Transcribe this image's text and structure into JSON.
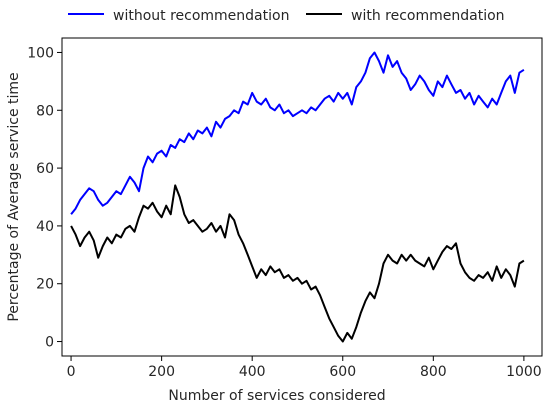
{
  "chart_data": {
    "type": "line",
    "title": "",
    "xlabel": "Number of services considered",
    "ylabel": "Percentage of Average service time",
    "xlim": [
      -20,
      1040
    ],
    "ylim": [
      -5,
      105
    ],
    "xticks": [
      0,
      200,
      400,
      600,
      800,
      1000
    ],
    "yticks": [
      0,
      20,
      40,
      60,
      80,
      100
    ],
    "grid": false,
    "legend": {
      "placement": "top-center",
      "columns": 2
    },
    "series": [
      {
        "name": "without recommendation",
        "color": "#0000ff",
        "x": [
          0,
          10,
          20,
          30,
          40,
          50,
          60,
          70,
          80,
          90,
          100,
          110,
          120,
          130,
          140,
          150,
          160,
          170,
          180,
          190,
          200,
          210,
          220,
          230,
          240,
          250,
          260,
          270,
          280,
          290,
          300,
          310,
          320,
          330,
          340,
          350,
          360,
          370,
          380,
          390,
          400,
          410,
          420,
          430,
          440,
          450,
          460,
          470,
          480,
          490,
          500,
          510,
          520,
          530,
          540,
          550,
          560,
          570,
          580,
          590,
          600,
          610,
          620,
          630,
          640,
          650,
          660,
          670,
          680,
          690,
          700,
          710,
          720,
          730,
          740,
          750,
          760,
          770,
          780,
          790,
          800,
          810,
          820,
          830,
          840,
          850,
          860,
          870,
          880,
          890,
          900,
          910,
          920,
          930,
          940,
          950,
          960,
          970,
          980,
          990,
          1000
        ],
        "y": [
          44,
          46,
          49,
          51,
          53,
          52,
          49,
          47,
          48,
          50,
          52,
          51,
          54,
          57,
          55,
          52,
          60,
          64,
          62,
          65,
          66,
          64,
          68,
          67,
          70,
          69,
          72,
          70,
          73,
          72,
          74,
          71,
          76,
          74,
          77,
          78,
          80,
          79,
          83,
          82,
          86,
          83,
          82,
          84,
          81,
          80,
          82,
          79,
          80,
          78,
          79,
          80,
          79,
          81,
          80,
          82,
          84,
          85,
          83,
          86,
          84,
          86,
          82,
          88,
          90,
          93,
          98,
          100,
          97,
          93,
          99,
          95,
          97,
          93,
          91,
          87,
          89,
          92,
          90,
          87,
          85,
          90,
          88,
          92,
          89,
          86,
          87,
          84,
          86,
          82,
          85,
          83,
          81,
          84,
          82,
          86,
          90,
          92,
          86,
          93,
          94
        ]
      },
      {
        "name": "with recommendation",
        "color": "#000000",
        "x": [
          0,
          10,
          20,
          30,
          40,
          50,
          60,
          70,
          80,
          90,
          100,
          110,
          120,
          130,
          140,
          150,
          160,
          170,
          180,
          190,
          200,
          210,
          220,
          230,
          240,
          250,
          260,
          270,
          280,
          290,
          300,
          310,
          320,
          330,
          340,
          350,
          360,
          370,
          380,
          390,
          400,
          410,
          420,
          430,
          440,
          450,
          460,
          470,
          480,
          490,
          500,
          510,
          520,
          530,
          540,
          550,
          560,
          570,
          580,
          590,
          600,
          610,
          620,
          630,
          640,
          650,
          660,
          670,
          680,
          690,
          700,
          710,
          720,
          730,
          740,
          750,
          760,
          770,
          780,
          790,
          800,
          810,
          820,
          830,
          840,
          850,
          860,
          870,
          880,
          890,
          900,
          910,
          920,
          930,
          940,
          950,
          960,
          970,
          980,
          990,
          1000
        ],
        "y": [
          40,
          37,
          33,
          36,
          38,
          35,
          29,
          33,
          36,
          34,
          37,
          36,
          39,
          40,
          38,
          43,
          47,
          46,
          48,
          45,
          43,
          47,
          44,
          54,
          50,
          44,
          41,
          42,
          40,
          38,
          39,
          41,
          38,
          40,
          36,
          44,
          42,
          37,
          34,
          30,
          26,
          22,
          25,
          23,
          26,
          24,
          25,
          22,
          23,
          21,
          22,
          20,
          21,
          18,
          19,
          16,
          12,
          8,
          5,
          2,
          0,
          3,
          1,
          5,
          10,
          14,
          17,
          15,
          20,
          27,
          30,
          28,
          27,
          30,
          28,
          30,
          28,
          27,
          26,
          29,
          25,
          28,
          31,
          33,
          32,
          34,
          27,
          24,
          22,
          21,
          23,
          22,
          24,
          21,
          26,
          22,
          25,
          23,
          19,
          27,
          28
        ]
      }
    ]
  }
}
